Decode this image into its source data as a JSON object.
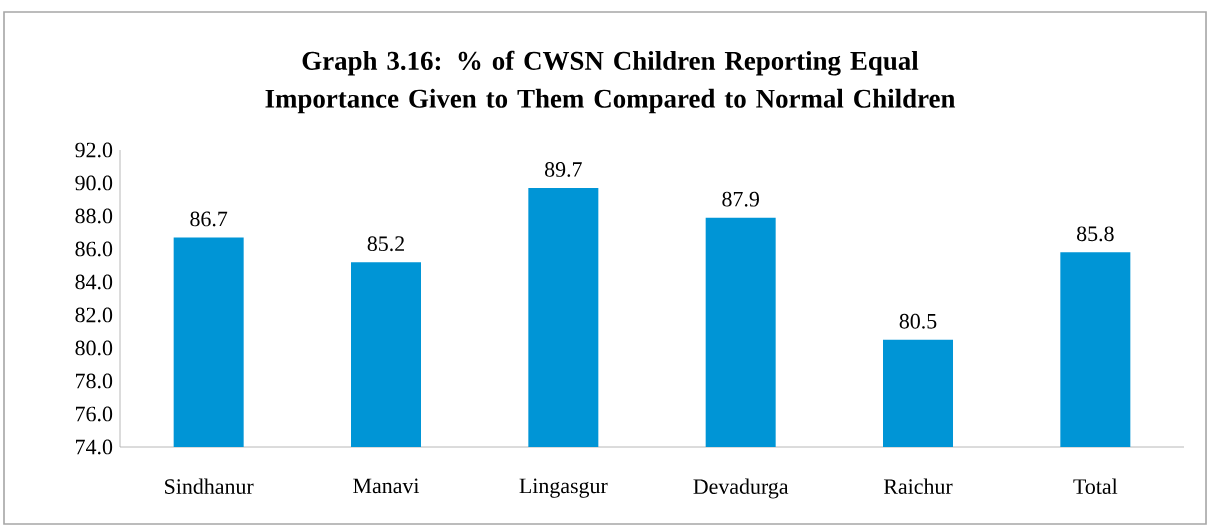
{
  "chart_data": {
    "type": "bar",
    "title": "Graph 3.16: % of CWSN Children Reporting Equal Importance Given to Them Compared to  Normal Children",
    "categories": [
      "Sindhanur",
      "Manavi",
      "Lingasgur",
      "Devadurga",
      "Raichur",
      "Total"
    ],
    "values": [
      86.7,
      85.2,
      89.7,
      87.9,
      80.5,
      85.8
    ],
    "color": "#0095d6",
    "ylim": [
      74,
      92
    ],
    "yticks": [
      {
        "value": 74,
        "label": "74.0"
      },
      {
        "value": 76,
        "label": "76.0"
      },
      {
        "value": 78,
        "label": "78.0"
      },
      {
        "value": 80,
        "label": "80.0"
      },
      {
        "value": 82,
        "label": "82.0"
      },
      {
        "value": 84,
        "label": "84.0"
      },
      {
        "value": 86,
        "label": "86.0"
      },
      {
        "value": 88,
        "label": "88.0"
      },
      {
        "value": 90,
        "label": "90.0"
      },
      {
        "value": 92,
        "label": "92.0"
      }
    ],
    "data_labels": true,
    "grid": false
  }
}
